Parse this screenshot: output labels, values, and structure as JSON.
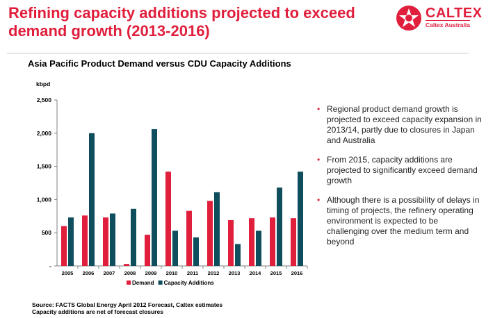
{
  "slide": {
    "title_line1": "Refining capacity additions projected to exceed",
    "title_line2": "demand growth (2013-2016)"
  },
  "logo": {
    "name": "CALTEX",
    "subtitle": "Caltex Australia"
  },
  "chart_title": "Asia Pacific Product Demand versus CDU Capacity Additions",
  "bullets": [
    "Regional product demand growth is projected to exceed capacity expansion in 2013/14, partly due to closures in Japan and Australia",
    "From 2015, capacity additions are projected to significantly exceed demand growth",
    "Although there is a possibility of delays in timing of projects, the refinery operating environment is expected to be challenging over the medium term and beyond"
  ],
  "footnotes": [
    "Source: FACTS Global Energy April 2012 Forecast, Caltex estimates",
    "Capacity additions are net of forecast closures"
  ],
  "chart_data": {
    "type": "bar",
    "title": "Asia Pacific Product Demand versus CDU Capacity Additions",
    "ylabel": "kbpd",
    "xlabel": "",
    "ylim": [
      0,
      2500
    ],
    "yticks": [
      0,
      500,
      1000,
      1500,
      2000,
      2500
    ],
    "ytick_labels": [
      "-",
      "500",
      "1,000",
      "1,500",
      "2,000",
      "2,500"
    ],
    "categories": [
      "2005",
      "2006",
      "2007",
      "2008",
      "2009",
      "2010",
      "2011",
      "2012",
      "2013",
      "2014",
      "2015",
      "2016"
    ],
    "series": [
      {
        "name": "Demand",
        "color": "#e01f3d",
        "values": [
          600,
          760,
          730,
          30,
          470,
          1420,
          830,
          980,
          690,
          720,
          730,
          720
        ]
      },
      {
        "name": "Capacity Additions",
        "color": "#0f4e5c",
        "values": [
          730,
          2000,
          790,
          860,
          2060,
          530,
          430,
          1110,
          330,
          530,
          1180,
          1420
        ]
      }
    ],
    "legend": "bottom",
    "grid": false
  }
}
